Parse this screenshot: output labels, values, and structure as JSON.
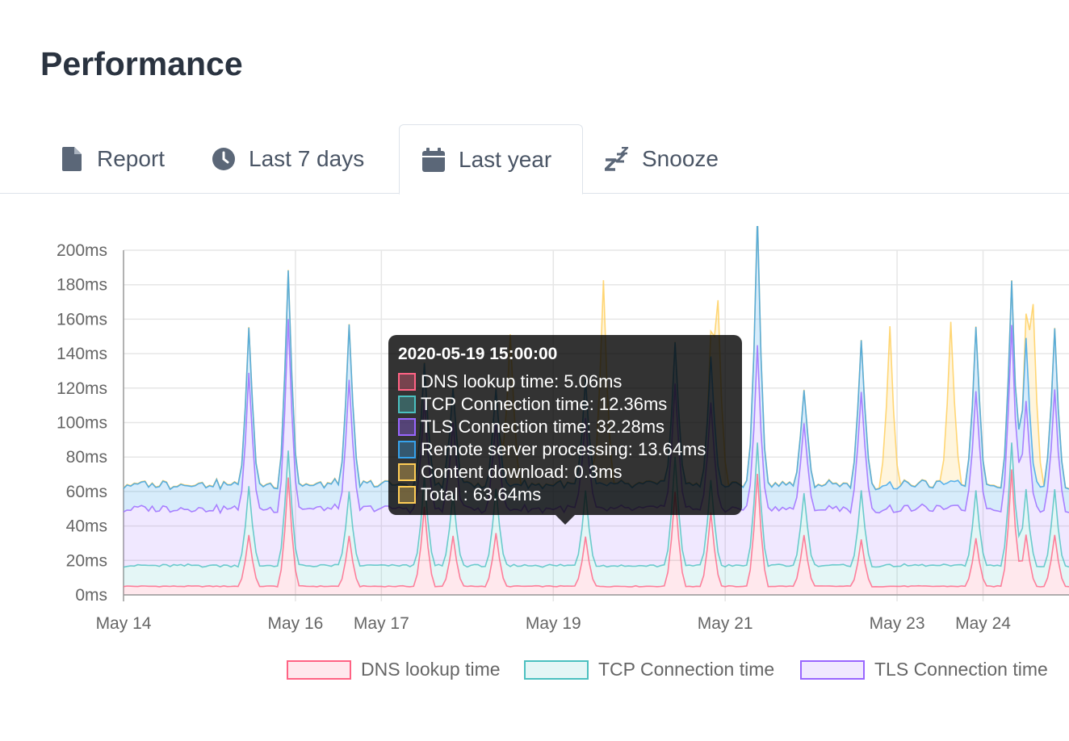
{
  "page": {
    "title": "Performance"
  },
  "tabs": [
    {
      "label": "Report",
      "icon": "file-icon",
      "active": false
    },
    {
      "label": "Last 7 days",
      "icon": "clock-icon",
      "active": false
    },
    {
      "label": "Last year",
      "icon": "calendar-icon",
      "active": true
    },
    {
      "label": "Snooze",
      "icon": "snooze-icon",
      "active": false
    }
  ],
  "chart_data": {
    "type": "area",
    "stacked": true,
    "x_tick_labels": [
      "May 14",
      "May 16",
      "May 17",
      "May 19",
      "May 21",
      "May 23",
      "May 24"
    ],
    "y_tick_labels": [
      "0ms",
      "20ms",
      "40ms",
      "60ms",
      "80ms",
      "100ms",
      "120ms",
      "140ms",
      "160ms",
      "180ms",
      "200ms"
    ],
    "ylim": [
      0,
      200
    ],
    "xlim": [
      "2020-05-14 00:00",
      "2020-05-25 00:00"
    ],
    "grid": true,
    "legend_position": "bottom",
    "series": [
      {
        "name": "DNS lookup time",
        "color": "#ff6384",
        "baseline": 5,
        "spikes": [
          [
            "2020-05-15 11:00",
            30
          ],
          [
            "2020-05-15 22:00",
            63
          ],
          [
            "2020-05-16 15:00",
            29
          ],
          [
            "2020-05-17 12:00",
            46
          ],
          [
            "2020-05-17 20:00",
            29
          ],
          [
            "2020-05-18 08:00",
            31
          ],
          [
            "2020-05-19 09:00",
            29
          ],
          [
            "2020-05-20 10:00",
            55
          ],
          [
            "2020-05-20 20:00",
            43
          ],
          [
            "2020-05-21 09:00",
            65
          ],
          [
            "2020-05-21 22:00",
            30
          ],
          [
            "2020-05-22 14:00",
            27
          ],
          [
            "2020-05-23 22:00",
            28
          ],
          [
            "2020-05-24 08:00",
            68
          ],
          [
            "2020-05-24 12:00",
            30
          ],
          [
            "2020-05-24 20:00",
            30
          ]
        ]
      },
      {
        "name": "TCP Connection time",
        "color": "#4bc0c0",
        "baseline": 12,
        "spikes": [
          [
            "2020-05-15 11:00",
            16
          ],
          [
            "2020-05-15 22:00",
            4
          ],
          [
            "2020-05-16 15:00",
            14
          ],
          [
            "2020-05-17 12:00",
            5
          ],
          [
            "2020-05-17 20:00",
            13
          ],
          [
            "2020-05-18 08:00",
            13
          ],
          [
            "2020-05-19 09:00",
            15
          ],
          [
            "2020-05-20 10:00",
            8
          ],
          [
            "2020-05-20 20:00",
            7
          ],
          [
            "2020-05-21 09:00",
            6
          ],
          [
            "2020-05-21 22:00",
            13
          ],
          [
            "2020-05-22 14:00",
            16
          ],
          [
            "2020-05-23 22:00",
            16
          ],
          [
            "2020-05-24 08:00",
            4
          ],
          [
            "2020-05-24 12:00",
            14
          ],
          [
            "2020-05-24 20:00",
            14
          ]
        ]
      },
      {
        "name": "TLS Connection time",
        "color": "#9966ff",
        "baseline": 33,
        "spikes": [
          [
            "2020-05-15 11:00",
            32
          ],
          [
            "2020-05-15 22:00",
            44
          ],
          [
            "2020-05-16 15:00",
            30
          ],
          [
            "2020-05-17 12:00",
            12
          ],
          [
            "2020-05-17 20:00",
            8
          ],
          [
            "2020-05-18 08:00",
            6
          ],
          [
            "2020-05-19 09:00",
            8
          ],
          [
            "2020-05-20 10:00",
            10
          ],
          [
            "2020-05-20 20:00",
            10
          ],
          [
            "2020-05-21 09:00",
            22
          ],
          [
            "2020-05-21 22:00",
            6
          ],
          [
            "2020-05-22 14:00",
            26
          ],
          [
            "2020-05-23 22:00",
            26
          ],
          [
            "2020-05-24 08:00",
            36
          ],
          [
            "2020-05-24 12:00",
            20
          ],
          [
            "2020-05-24 20:00",
            26
          ]
        ]
      },
      {
        "name": "Remote server processing",
        "color": "#36a2eb",
        "baseline": 14,
        "spikes": [
          [
            "2020-05-15 11:00",
            12
          ],
          [
            "2020-05-15 22:00",
            14
          ],
          [
            "2020-05-16 15:00",
            18
          ],
          [
            "2020-05-17 12:00",
            8
          ],
          [
            "2020-05-17 20:00",
            6
          ],
          [
            "2020-05-18 08:00",
            5
          ],
          [
            "2020-05-19 09:00",
            8
          ],
          [
            "2020-05-20 10:00",
            10
          ],
          [
            "2020-05-20 20:00",
            12
          ],
          [
            "2020-05-21 09:00",
            60
          ],
          [
            "2020-05-21 22:00",
            6
          ],
          [
            "2020-05-22 14:00",
            16
          ],
          [
            "2020-05-23 22:00",
            24
          ],
          [
            "2020-05-24 08:00",
            12
          ],
          [
            "2020-05-24 12:00",
            22
          ],
          [
            "2020-05-24 20:00",
            22
          ]
        ]
      },
      {
        "name": "Content download",
        "color": "#ffcd56",
        "baseline": 0.3,
        "spikes": [
          [
            "2020-05-18 12:00",
            88
          ],
          [
            "2020-05-19 14:00",
            118
          ],
          [
            "2020-05-20 22:00",
            96
          ],
          [
            "2020-05-22 22:00",
            90
          ],
          [
            "2020-05-23 15:00",
            92
          ],
          [
            "2020-05-24 14:00",
            92
          ]
        ]
      }
    ]
  },
  "tooltip": {
    "title": "2020-05-19 15:00:00",
    "rows": [
      {
        "text": "DNS lookup time: 5.06ms",
        "color": "#ff6384"
      },
      {
        "text": "TCP Connection time: 12.36ms",
        "color": "#4bc0c0"
      },
      {
        "text": "TLS Connection time: 32.28ms",
        "color": "#9966ff"
      },
      {
        "text": "Remote server processing: 13.64ms",
        "color": "#36a2eb"
      },
      {
        "text": "Content download: 0.3ms",
        "color": "#ffcd56"
      },
      {
        "text": "Total : 63.64ms",
        "color": "#ffcd56"
      }
    ]
  },
  "legend": [
    {
      "label": "DNS lookup time",
      "color": "#ff6384"
    },
    {
      "label": "TCP Connection time",
      "color": "#4bc0c0"
    },
    {
      "label": "TLS Connection time",
      "color": "#9966ff"
    }
  ]
}
